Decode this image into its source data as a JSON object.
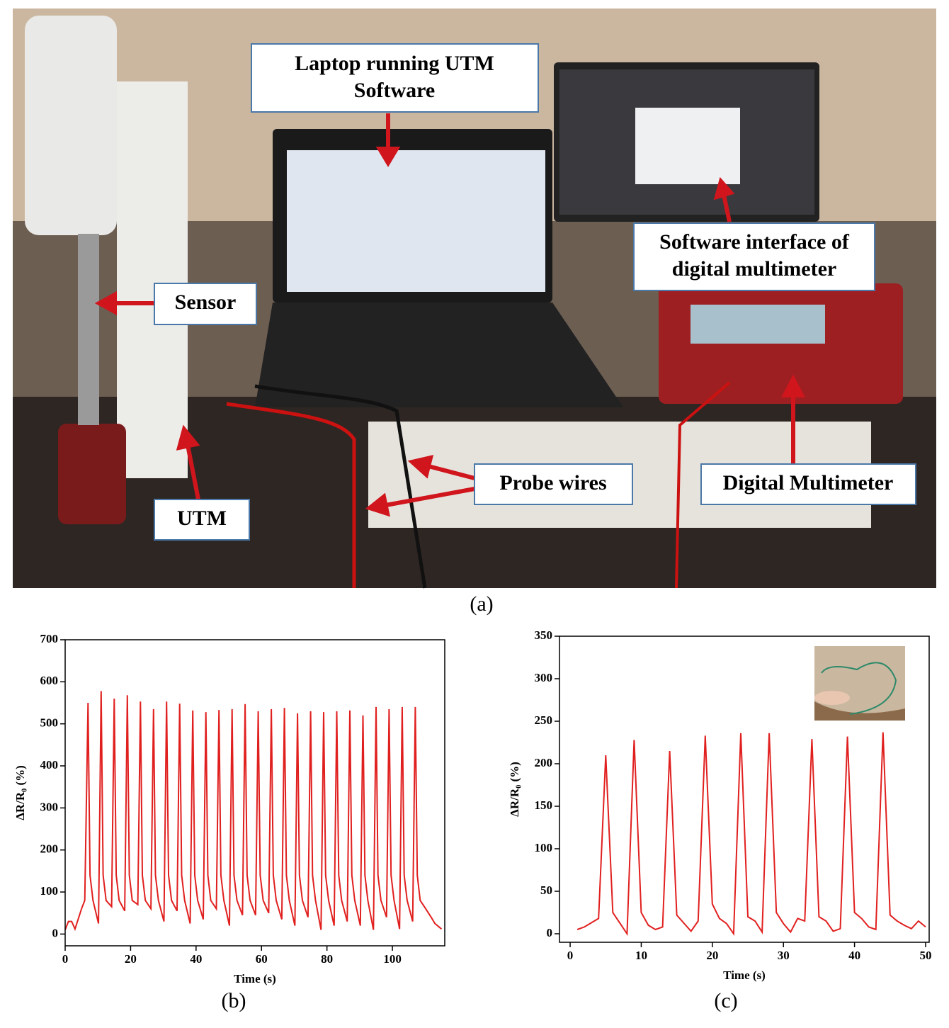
{
  "photo": {
    "annotations": [
      [
        "Laptop running UTM",
        "Software"
      ],
      [
        "Software interface of",
        "digital multimeter"
      ],
      [
        "Sensor"
      ],
      [
        "UTM"
      ],
      [
        "Probe wires"
      ],
      [
        "Digital Multimeter"
      ]
    ],
    "caption": "(a)"
  },
  "chart_data": [
    {
      "type": "line",
      "caption": "(b)",
      "x_label": "Time (s)",
      "y_label": "ΔR/R₀ (%)",
      "color": "#e0201f",
      "x": [
        0,
        1,
        2,
        3,
        5,
        6,
        7,
        7.6,
        8.5,
        10.2,
        11,
        11.6,
        12.5,
        14.2,
        15,
        15.6,
        16.5,
        18.2,
        19,
        19.6,
        20.5,
        22.2,
        23,
        23.6,
        24.5,
        26.2,
        27,
        27.6,
        28.5,
        30.2,
        31,
        31.6,
        32.5,
        34.2,
        35,
        35.6,
        36.5,
        38.2,
        39,
        39.6,
        40.5,
        42.2,
        43,
        43.6,
        44.5,
        46.2,
        47,
        47.6,
        48.5,
        50.2,
        51,
        51.6,
        52.5,
        54.2,
        55,
        55.6,
        56.5,
        58.2,
        59,
        59.6,
        60.5,
        62.2,
        63,
        63.6,
        64.5,
        66.2,
        67,
        67.6,
        68.5,
        70.2,
        71,
        71.6,
        72.5,
        74.2,
        75,
        75.6,
        76.5,
        78.2,
        79,
        79.6,
        80.5,
        82.2,
        83,
        83.6,
        84.5,
        86.2,
        87,
        87.6,
        88.5,
        90.2,
        91,
        91.6,
        92.5,
        94.2,
        95,
        95.6,
        96.5,
        98.2,
        99,
        99.6,
        100.5,
        102.2,
        103,
        103.6,
        104.5,
        106.2,
        107,
        107.6,
        108.5,
        110.2,
        112,
        113,
        115
      ],
      "values": [
        10,
        30,
        30,
        12,
        60,
        80,
        550,
        140,
        80,
        25,
        578,
        140,
        80,
        65,
        560,
        140,
        80,
        55,
        568,
        140,
        80,
        70,
        553,
        140,
        80,
        60,
        535,
        140,
        80,
        30,
        553,
        140,
        80,
        55,
        548,
        140,
        80,
        25,
        532,
        140,
        80,
        35,
        528,
        140,
        80,
        60,
        533,
        140,
        80,
        20,
        535,
        140,
        80,
        45,
        547,
        140,
        80,
        45,
        530,
        140,
        80,
        50,
        535,
        140,
        80,
        35,
        538,
        140,
        80,
        20,
        525,
        140,
        80,
        40,
        530,
        140,
        80,
        10,
        528,
        140,
        80,
        20,
        530,
        140,
        80,
        30,
        532,
        140,
        80,
        20,
        520,
        140,
        80,
        10,
        540,
        140,
        80,
        40,
        535,
        140,
        80,
        12,
        540,
        140,
        80,
        30,
        540,
        140,
        80,
        60,
        38,
        25,
        12
      ],
      "xlim": [
        0,
        116
      ],
      "xticks": [
        0,
        20,
        40,
        60,
        80,
        100
      ],
      "ylim": [
        -28,
        700
      ],
      "yticks": [
        0,
        100,
        200,
        300,
        400,
        500,
        600,
        700
      ]
    },
    {
      "type": "line",
      "caption": "(c)",
      "x_label": "Time (s)",
      "y_label": "ΔR/R₀ (%)",
      "color": "#e0201f",
      "x": [
        1,
        2,
        4,
        5,
        6,
        8,
        9,
        10,
        11,
        12,
        13,
        14,
        15,
        17,
        18,
        19,
        20,
        21,
        22,
        23,
        24,
        25,
        26,
        27,
        28,
        29,
        30,
        31,
        32,
        33,
        34,
        35,
        36,
        37,
        38,
        39,
        40,
        41,
        42,
        43,
        44,
        45,
        46,
        47,
        48,
        49,
        50
      ],
      "values": [
        5,
        8,
        18,
        210,
        25,
        0,
        228,
        25,
        10,
        5,
        8,
        215,
        22,
        3,
        15,
        233,
        35,
        18,
        12,
        0,
        236,
        20,
        15,
        2,
        236,
        25,
        12,
        2,
        18,
        15,
        229,
        20,
        15,
        3,
        6,
        232,
        25,
        18,
        8,
        5,
        237,
        22,
        15,
        10,
        6,
        15,
        8
      ],
      "xlim": [
        -1.5,
        50.5
      ],
      "xticks": [
        0,
        10,
        20,
        30,
        40,
        50
      ],
      "ylim": [
        -10,
        350
      ],
      "yticks": [
        0,
        50,
        100,
        150,
        200,
        250,
        300,
        350
      ]
    }
  ]
}
